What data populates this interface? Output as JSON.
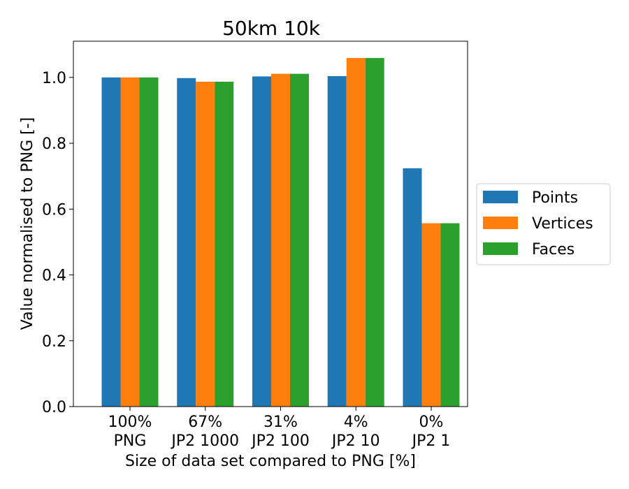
{
  "chart_data": {
    "type": "bar",
    "title": "50km 10k",
    "xlabel": "Size of data set compared to PNG [%]",
    "ylabel": "Value normalised to PNG [-]",
    "categories": [
      [
        "100%",
        "PNG"
      ],
      [
        "67%",
        "JP2 1000"
      ],
      [
        "31%",
        "JP2 100"
      ],
      [
        "4%",
        "JP2 10"
      ],
      [
        "0%",
        "JP2 1"
      ]
    ],
    "series": [
      {
        "name": "Points",
        "color": "#1f77b4",
        "values": [
          1.0,
          0.998,
          1.003,
          1.004,
          0.724
        ]
      },
      {
        "name": "Vertices",
        "color": "#ff7f0e",
        "values": [
          1.0,
          0.987,
          1.011,
          1.059,
          0.557
        ]
      },
      {
        "name": "Faces",
        "color": "#2ca02c",
        "values": [
          1.0,
          0.987,
          1.011,
          1.059,
          0.557
        ]
      }
    ],
    "ylim": [
      0,
      1.11
    ],
    "yticks": [
      0.0,
      0.2,
      0.4,
      0.6,
      0.8,
      1.0
    ],
    "ytick_labels": [
      "0.0",
      "0.2",
      "0.4",
      "0.6",
      "0.8",
      "1.0"
    ],
    "grid": false,
    "legend_position": "right"
  }
}
